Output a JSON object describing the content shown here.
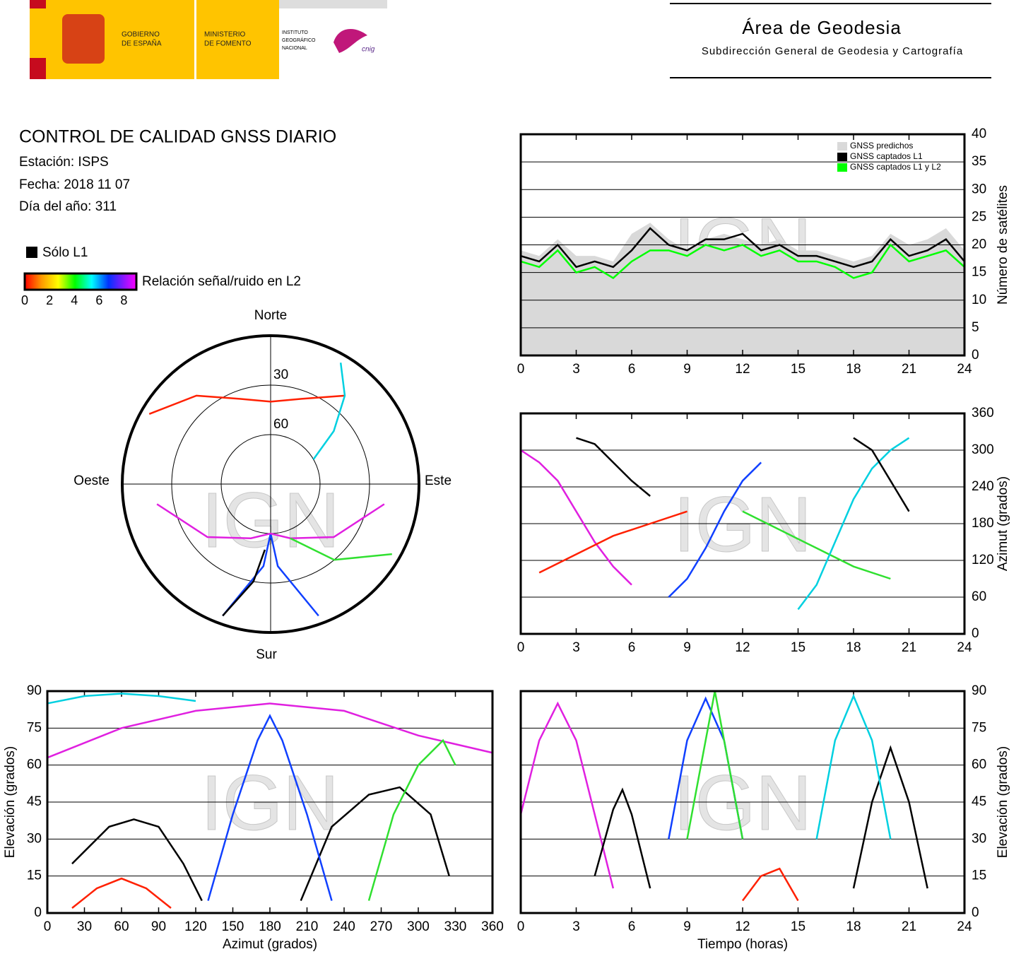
{
  "header": {
    "gobierno": [
      "GOBIERNO",
      "DE ESPAÑA"
    ],
    "ministerio": [
      "MINISTERIO",
      "DE FOMENTO"
    ],
    "instituto": [
      "INSTITUTO",
      "GEOGRÁFICO",
      "NACIONAL"
    ],
    "cnig": "cnig",
    "area": "Área de Geodesia",
    "subdireccion": "Subdirección General de Geodesia y Cartografía"
  },
  "report": {
    "title": "CONTROL DE CALIDAD GNSS DIARIO",
    "station": "Estación: ISPS",
    "date": "Fecha: 2018 11 07",
    "doy": "Día del año: 311",
    "l1_only": "Sólo L1",
    "l1_only_color": "#000000",
    "snr_label": "Relación señal/ruido en L2",
    "snr_range": [
      0,
      9
    ],
    "snr_ticks": [
      0,
      2,
      4,
      6,
      8
    ]
  },
  "watermark": "IGN",
  "chart_data": [
    {
      "type": "line",
      "ylabel": "Número de satélites",
      "xlim": [
        0,
        24
      ],
      "xticks": [
        0,
        3,
        6,
        9,
        12,
        15,
        18,
        21,
        24
      ],
      "ylim": [
        0,
        40
      ],
      "yticks": [
        0,
        5,
        10,
        15,
        20,
        25,
        30,
        35,
        40
      ],
      "grid": true,
      "legend": "top-right",
      "x": [
        0,
        1,
        2,
        3,
        4,
        5,
        6,
        7,
        8,
        9,
        10,
        11,
        12,
        13,
        14,
        15,
        16,
        17,
        18,
        19,
        20,
        21,
        22,
        23,
        24
      ],
      "series": [
        {
          "name": "GNSS predichos",
          "type": "area",
          "color": "#d9d9d9",
          "values": [
            19,
            18,
            21,
            18,
            18,
            17,
            22,
            24,
            21,
            19,
            21,
            22,
            21,
            20,
            21,
            19,
            19,
            18,
            17,
            18,
            22,
            20,
            21,
            23,
            19
          ]
        },
        {
          "name": "GNSS captados L1",
          "color": "#000000",
          "values": [
            18,
            17,
            20,
            16,
            17,
            16,
            19,
            23,
            20,
            19,
            21,
            21,
            22,
            19,
            20,
            18,
            18,
            17,
            16,
            17,
            21,
            18,
            19,
            21,
            17
          ]
        },
        {
          "name": "GNSS captados L1 y L2",
          "color": "#00ff00",
          "values": [
            17,
            16,
            19,
            15,
            16,
            14,
            17,
            19,
            19,
            18,
            20,
            19,
            20,
            18,
            19,
            17,
            17,
            16,
            14,
            15,
            20,
            17,
            18,
            19,
            16
          ]
        }
      ]
    },
    {
      "type": "line",
      "ylabel": "Azimut (grados)",
      "xlim": [
        0,
        24
      ],
      "xticks": [
        0,
        3,
        6,
        9,
        12,
        15,
        18,
        21,
        24
      ],
      "ylim": [
        0,
        360
      ],
      "yticks": [
        0,
        60,
        120,
        180,
        240,
        300,
        360
      ],
      "grid": true,
      "series": [
        {
          "color": "#e020e0",
          "x": [
            0,
            1,
            2,
            3,
            4,
            5,
            6
          ],
          "values": [
            300,
            280,
            250,
            200,
            150,
            110,
            80
          ]
        },
        {
          "color": "#000000",
          "x": [
            3,
            4,
            5,
            6,
            7
          ],
          "values": [
            320,
            310,
            280,
            250,
            225
          ]
        },
        {
          "color": "#1040ff",
          "x": [
            8,
            9,
            10,
            11,
            12,
            13
          ],
          "values": [
            60,
            90,
            140,
            200,
            250,
            280
          ]
        },
        {
          "color": "#30e030",
          "x": [
            12,
            14,
            16,
            18,
            20
          ],
          "values": [
            200,
            170,
            140,
            110,
            90
          ]
        },
        {
          "color": "#00d0e0",
          "x": [
            15,
            16,
            17,
            18,
            19,
            20,
            21
          ],
          "values": [
            40,
            80,
            150,
            220,
            270,
            300,
            320
          ]
        },
        {
          "color": "#ff2000",
          "x": [
            1,
            3,
            5,
            7,
            9
          ],
          "values": [
            100,
            130,
            160,
            180,
            200
          ]
        },
        {
          "color": "#000000",
          "x": [
            18,
            19,
            20,
            21
          ],
          "values": [
            320,
            300,
            250,
            200
          ]
        }
      ]
    },
    {
      "type": "polar",
      "directions": [
        "Norte",
        "Este",
        "Sur",
        "Oeste"
      ],
      "rlim": [
        90,
        0
      ],
      "rticks": [
        30,
        60
      ],
      "series": [
        {
          "color": "#ff2000",
          "x": [
            300,
            320,
            340,
            0,
            20,
            40
          ],
          "values": [
            5,
            20,
            35,
            40,
            35,
            20
          ]
        },
        {
          "color": "#1040ff",
          "x": [
            160,
            175,
            180,
            185,
            200
          ],
          "values": [
            5,
            40,
            60,
            40,
            5
          ]
        },
        {
          "color": "#e020e0",
          "x": [
            100,
            130,
            160,
            180,
            200,
            230,
            260
          ],
          "values": [
            20,
            40,
            55,
            60,
            55,
            40,
            20
          ]
        },
        {
          "color": "#30e030",
          "x": [
            120,
            140,
            160
          ],
          "values": [
            5,
            30,
            55
          ]
        },
        {
          "color": "#000000",
          "x": [
            200,
            190,
            185
          ],
          "values": [
            5,
            30,
            50
          ]
        },
        {
          "color": "#00d0e0",
          "x": [
            60,
            50,
            40,
            30
          ],
          "values": [
            60,
            40,
            20,
            5
          ]
        }
      ]
    },
    {
      "type": "line",
      "xlabel": "Azimut (grados)",
      "ylabel": "Elevación (grados)",
      "xlim": [
        0,
        360
      ],
      "xticks": [
        0,
        30,
        60,
        90,
        120,
        150,
        180,
        210,
        240,
        270,
        300,
        330,
        360
      ],
      "ylim": [
        0,
        90
      ],
      "yticks": [
        0,
        15,
        30,
        45,
        60,
        75,
        90
      ],
      "grid": true,
      "series": [
        {
          "color": "#000000",
          "x": [
            205,
            230,
            260,
            285,
            310,
            325
          ],
          "values": [
            5,
            35,
            48,
            51,
            40,
            15
          ]
        },
        {
          "color": "#000000",
          "x": [
            20,
            50,
            70,
            90,
            110,
            125
          ],
          "values": [
            20,
            35,
            38,
            35,
            20,
            5
          ]
        },
        {
          "color": "#e020e0",
          "x": [
            0,
            60,
            120,
            180,
            240,
            300,
            360
          ],
          "values": [
            63,
            75,
            82,
            85,
            82,
            72,
            65
          ]
        },
        {
          "color": "#1040ff",
          "x": [
            130,
            150,
            170,
            180,
            190,
            210,
            230
          ],
          "values": [
            5,
            40,
            70,
            80,
            70,
            40,
            5
          ]
        },
        {
          "color": "#30e030",
          "x": [
            260,
            280,
            300,
            320,
            330
          ],
          "values": [
            5,
            40,
            60,
            70,
            60
          ]
        },
        {
          "color": "#ff2000",
          "x": [
            20,
            40,
            60,
            80,
            100
          ],
          "values": [
            2,
            10,
            14,
            10,
            2
          ]
        },
        {
          "color": "#00d0e0",
          "x": [
            0,
            30,
            60,
            90,
            120
          ],
          "values": [
            85,
            88,
            89,
            88,
            86
          ]
        }
      ]
    },
    {
      "type": "line",
      "xlabel": "Tiempo (horas)",
      "ylabel": "Elevación (grados)",
      "xlim": [
        0,
        24
      ],
      "xticks": [
        0,
        3,
        6,
        9,
        12,
        15,
        18,
        21,
        24
      ],
      "ylim": [
        0,
        90
      ],
      "yticks": [
        0,
        15,
        30,
        45,
        60,
        75,
        90
      ],
      "grid": true,
      "series": [
        {
          "color": "#e020e0",
          "x": [
            0,
            1,
            2,
            3,
            4,
            5
          ],
          "values": [
            40,
            70,
            85,
            70,
            40,
            10
          ]
        },
        {
          "color": "#000000",
          "x": [
            4,
            5,
            5.5,
            6,
            7
          ],
          "values": [
            15,
            42,
            50,
            40,
            10
          ]
        },
        {
          "color": "#000000",
          "x": [
            18,
            19,
            20,
            21,
            22
          ],
          "values": [
            10,
            45,
            67,
            45,
            10
          ]
        },
        {
          "color": "#1040ff",
          "x": [
            8,
            9,
            10,
            11,
            12
          ],
          "values": [
            30,
            70,
            87,
            70,
            30
          ]
        },
        {
          "color": "#ff2000",
          "x": [
            12,
            13,
            14,
            15
          ],
          "values": [
            5,
            15,
            18,
            5
          ]
        },
        {
          "color": "#30e030",
          "x": [
            9,
            10,
            10.5,
            11,
            12
          ],
          "values": [
            30,
            70,
            90,
            70,
            30
          ]
        },
        {
          "color": "#00d0e0",
          "x": [
            16,
            17,
            18,
            19,
            20
          ],
          "values": [
            30,
            70,
            88,
            70,
            30
          ]
        }
      ]
    }
  ]
}
